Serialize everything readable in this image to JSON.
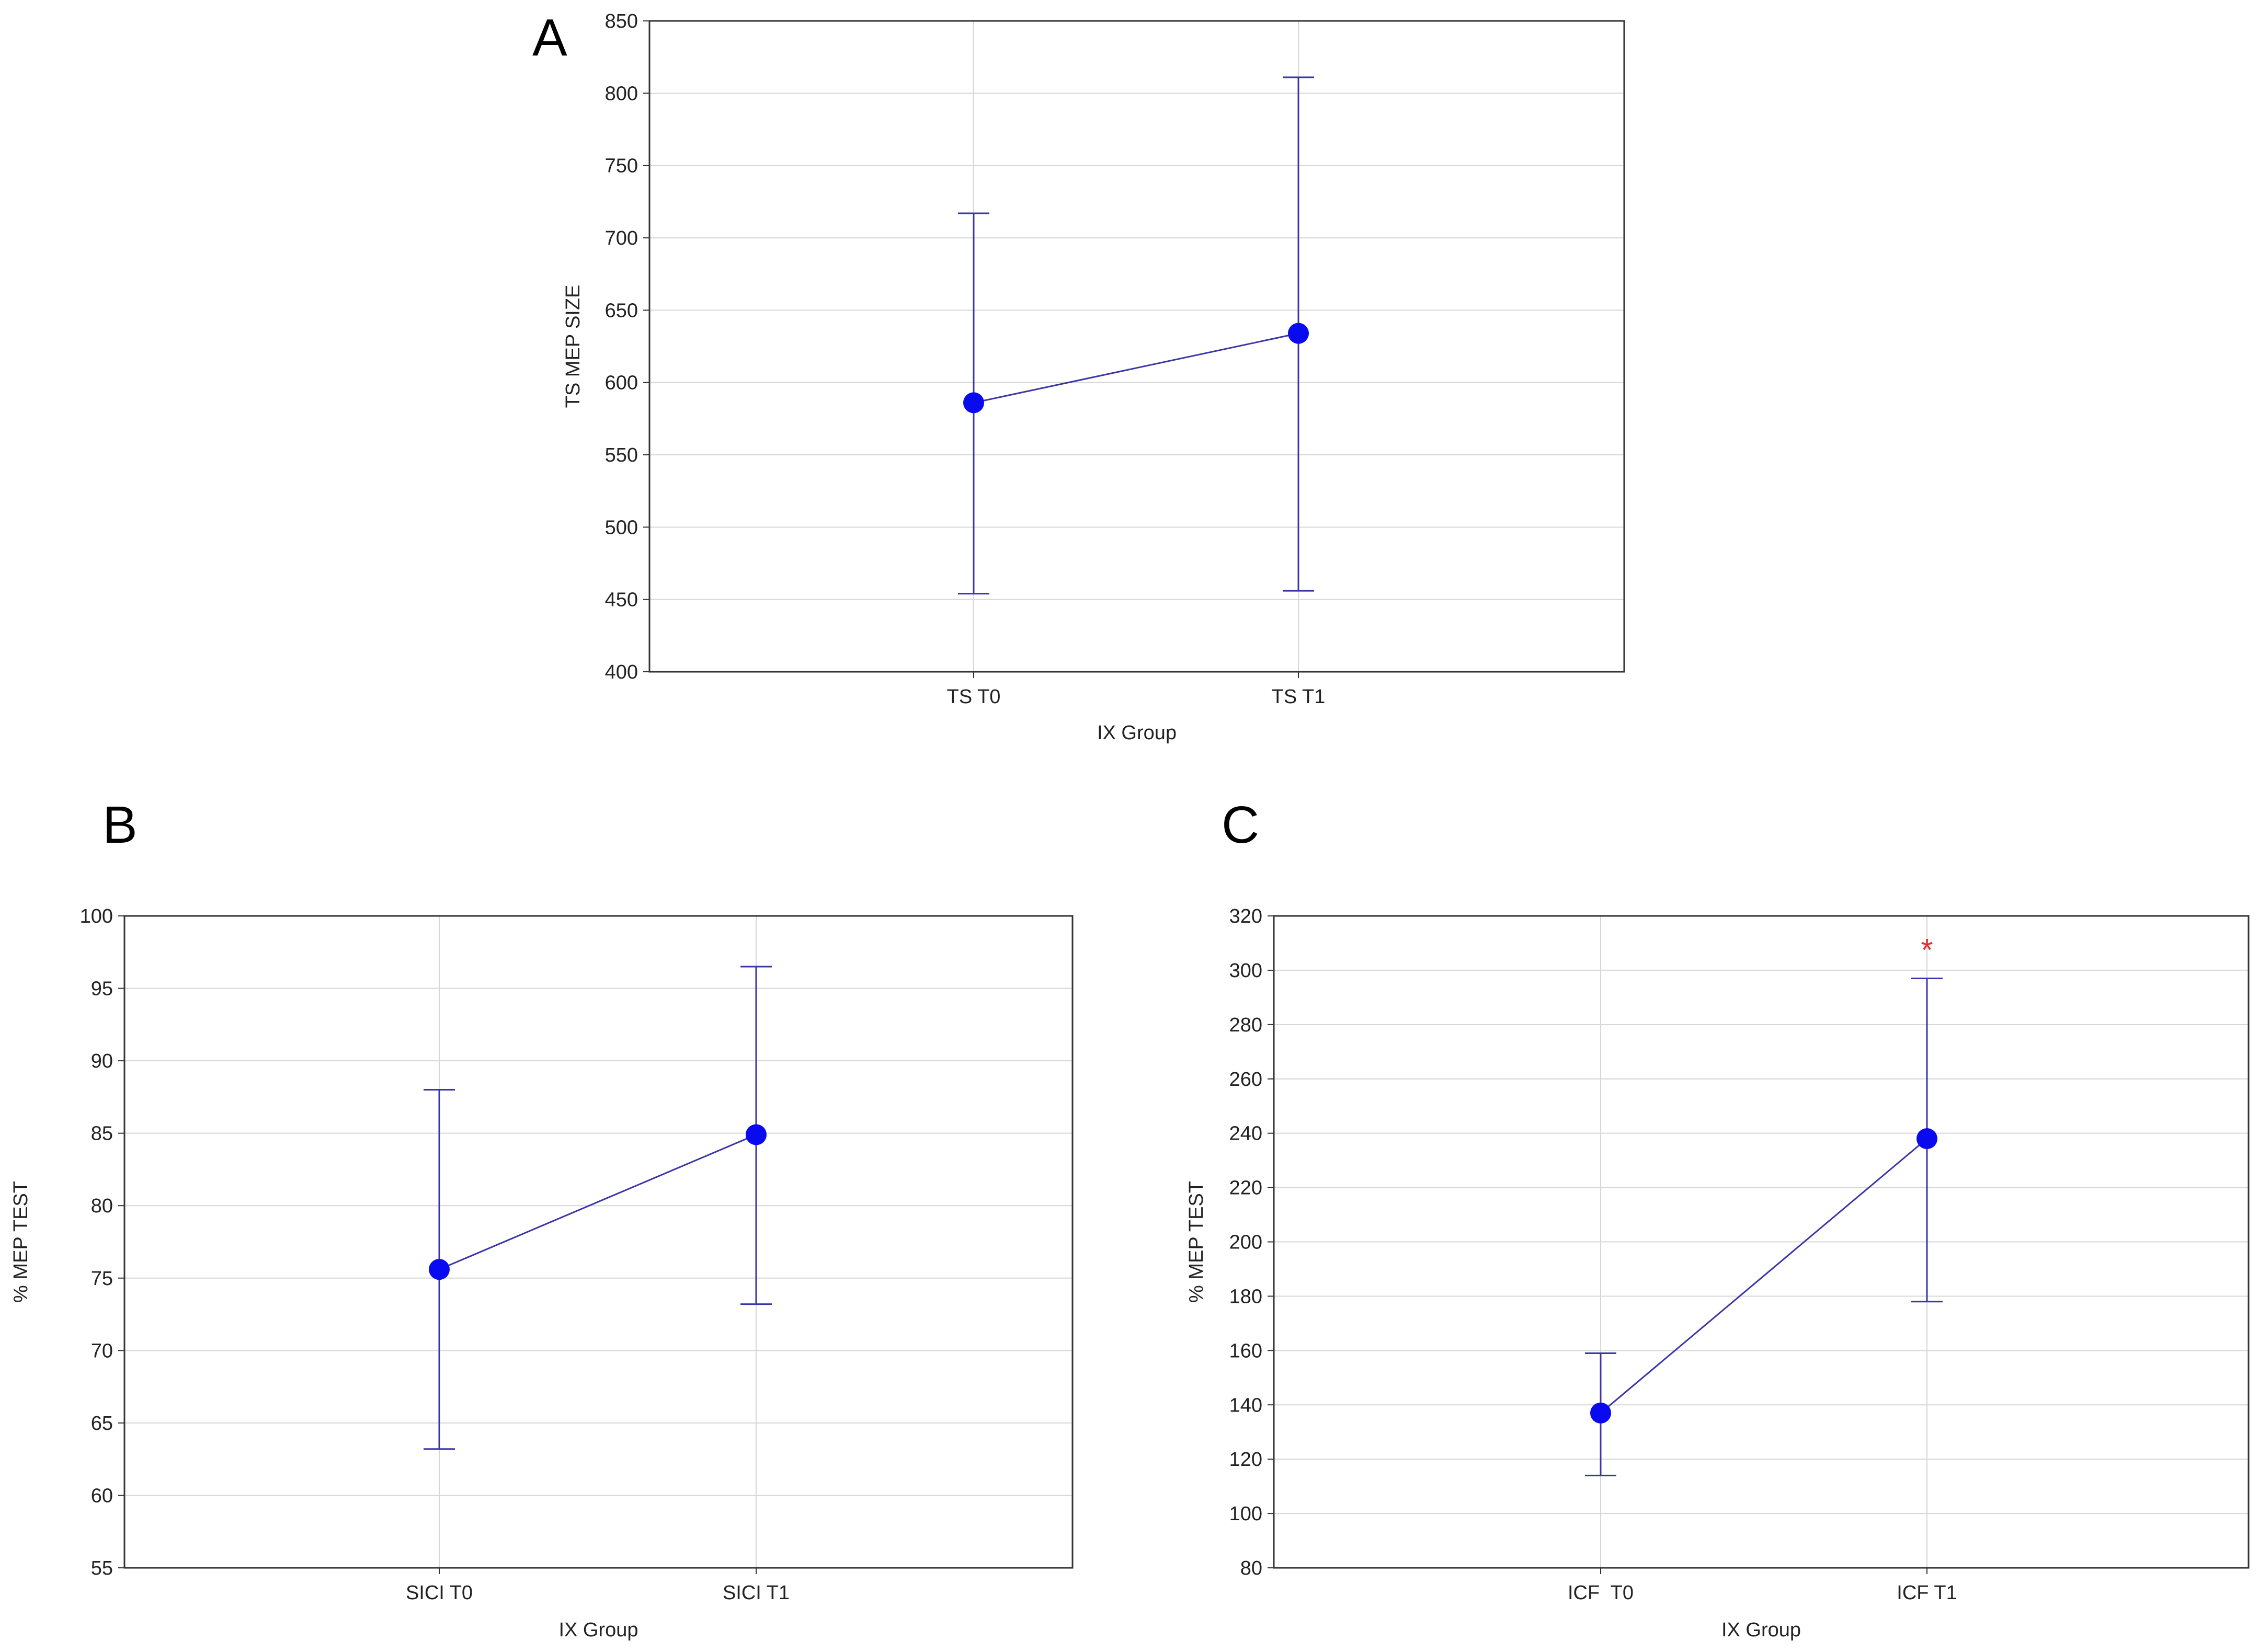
{
  "chart_data": [
    {
      "panel": "A",
      "type": "line",
      "xlabel": "IX Group",
      "ylabel": "TS MEP SIZE",
      "ylim": [
        400,
        850
      ],
      "ytick_step": 50,
      "categories": [
        "TS T0",
        "TS T1"
      ],
      "values": [
        586,
        634
      ],
      "ci_low": [
        454,
        456
      ],
      "ci_high": [
        717,
        811
      ],
      "annotations": [],
      "grid": true
    },
    {
      "panel": "B",
      "type": "line",
      "xlabel": "IX Group",
      "ylabel": "% MEP TEST",
      "ylim": [
        55,
        100
      ],
      "ytick_step": 5,
      "categories": [
        "SICI T0",
        "SICI T1"
      ],
      "values": [
        75.6,
        84.9
      ],
      "ci_low": [
        63.2,
        73.2
      ],
      "ci_high": [
        88.0,
        96.5
      ],
      "annotations": [],
      "grid": true
    },
    {
      "panel": "C",
      "type": "line",
      "xlabel": "IX Group",
      "ylabel": "% MEP TEST",
      "ylim": [
        80,
        320
      ],
      "ytick_step": 20,
      "categories": [
        "ICF  T0",
        "ICF T1"
      ],
      "values": [
        137,
        238
      ],
      "ci_low": [
        114,
        178
      ],
      "ci_high": [
        159,
        297
      ],
      "annotations": [
        {
          "text": "*",
          "category_index": 1,
          "above_value": 307
        }
      ],
      "grid": true
    }
  ],
  "colors": {
    "series": "#3a36a8",
    "marker": "#0a0af0",
    "grid": "#d6d6d6",
    "frame": "#333333",
    "annotation": "#e03030"
  }
}
